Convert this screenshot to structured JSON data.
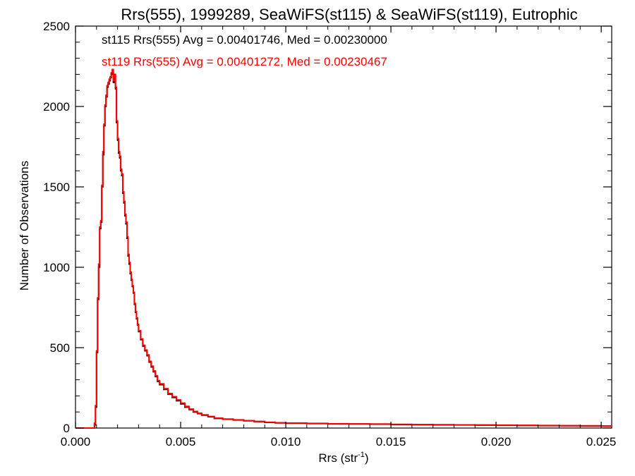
{
  "chart_data": {
    "type": "line",
    "title": "Rrs(555), 1999289, SeaWiFS(st115) & SeaWiFS(st119), Eutrophic",
    "xlabel": "Rrs (str",
    "xlabel_sup": "-1",
    "xlabel_close": ")",
    "ylabel": "Number of Observations",
    "xlim": [
      0.0,
      0.0255
    ],
    "ylim": [
      0,
      2500
    ],
    "grid": false,
    "xticks": [
      0.0,
      0.005,
      0.01,
      0.015,
      0.02,
      0.025
    ],
    "xtick_labels": [
      "0.000",
      "0.005",
      "0.010",
      "0.015",
      "0.020",
      "0.025"
    ],
    "yticks": [
      0,
      500,
      1000,
      1500,
      2000,
      2500
    ],
    "ytick_labels": [
      "0",
      "500",
      "1000",
      "1500",
      "2000",
      "2500"
    ],
    "annotations": [
      {
        "text": "st115 Rrs(555) Avg = 0.00401746, Med = 0.00230000",
        "color": "#000000"
      },
      {
        "text": "st119 Rrs(555) Avg = 0.00401272, Med = 0.00230467",
        "color": "#ff0000"
      }
    ],
    "series": [
      {
        "color": "#000000",
        "x": [
          0.0,
          0.0009,
          0.00095,
          0.001,
          0.00105,
          0.0011,
          0.00115,
          0.0012,
          0.00125,
          0.0013,
          0.00135,
          0.0014,
          0.00145,
          0.0015,
          0.00155,
          0.0016,
          0.00165,
          0.0017,
          0.00175,
          0.0018,
          0.00185,
          0.0019,
          0.00195,
          0.002,
          0.00205,
          0.0021,
          0.00215,
          0.0022,
          0.00225,
          0.0023,
          0.00235,
          0.0024,
          0.00245,
          0.0025,
          0.00255,
          0.0026,
          0.00265,
          0.0027,
          0.00275,
          0.0028,
          0.00285,
          0.0029,
          0.00295,
          0.003,
          0.0031,
          0.0032,
          0.0033,
          0.0034,
          0.0035,
          0.0036,
          0.0037,
          0.0038,
          0.0039,
          0.004,
          0.0042,
          0.0044,
          0.0046,
          0.0048,
          0.005,
          0.0052,
          0.0054,
          0.0056,
          0.0058,
          0.006,
          0.0063,
          0.0066,
          0.007,
          0.0075,
          0.008,
          0.0085,
          0.009,
          0.0095,
          0.01,
          0.011,
          0.012,
          0.013,
          0.014,
          0.015,
          0.016,
          0.017,
          0.018,
          0.019,
          0.02,
          0.021,
          0.022,
          0.023,
          0.024,
          0.025,
          0.0255
        ],
        "y": [
          0,
          20,
          130,
          470,
          800,
          1000,
          1240,
          1280,
          1500,
          1700,
          1880,
          2000,
          2060,
          2120,
          2140,
          2160,
          2180,
          2200,
          2210,
          2150,
          2190,
          2110,
          1900,
          1790,
          1710,
          1680,
          1600,
          1570,
          1460,
          1400,
          1320,
          1270,
          1180,
          1070,
          1020,
          960,
          920,
          880,
          840,
          770,
          720,
          680,
          640,
          600,
          550,
          510,
          480,
          450,
          410,
          380,
          350,
          320,
          290,
          270,
          240,
          210,
          190,
          170,
          150,
          130,
          115,
          100,
          90,
          80,
          70,
          60,
          55,
          50,
          45,
          40,
          35,
          32,
          30,
          28,
          26,
          25,
          24,
          22,
          21,
          20,
          19,
          18,
          17,
          16,
          15,
          14,
          13,
          12,
          12
        ]
      },
      {
        "color": "#ff0000",
        "x": [
          0.0,
          0.0009,
          0.00095,
          0.001,
          0.00105,
          0.0011,
          0.00115,
          0.0012,
          0.00125,
          0.0013,
          0.00135,
          0.0014,
          0.00145,
          0.0015,
          0.00155,
          0.0016,
          0.00165,
          0.0017,
          0.00175,
          0.0018,
          0.00185,
          0.0019,
          0.00195,
          0.002,
          0.00205,
          0.0021,
          0.00215,
          0.0022,
          0.00225,
          0.0023,
          0.00235,
          0.0024,
          0.00245,
          0.0025,
          0.00255,
          0.0026,
          0.00265,
          0.0027,
          0.00275,
          0.0028,
          0.00285,
          0.0029,
          0.00295,
          0.003,
          0.0031,
          0.0032,
          0.0033,
          0.0034,
          0.0035,
          0.0036,
          0.0037,
          0.0038,
          0.0039,
          0.004,
          0.0042,
          0.0044,
          0.0046,
          0.0048,
          0.005,
          0.0052,
          0.0054,
          0.0056,
          0.0058,
          0.006,
          0.0063,
          0.0066,
          0.007,
          0.0075,
          0.008,
          0.0085,
          0.009,
          0.0095,
          0.01,
          0.011,
          0.012,
          0.013,
          0.014,
          0.015,
          0.016,
          0.017,
          0.018,
          0.019,
          0.02,
          0.021,
          0.022,
          0.023,
          0.024,
          0.025,
          0.0255
        ],
        "y": [
          0,
          30,
          140,
          480,
          810,
          1020,
          1250,
          1290,
          1510,
          1720,
          1890,
          2010,
          2070,
          2130,
          2150,
          2170,
          2185,
          2210,
          2230,
          2160,
          2200,
          2120,
          1910,
          1800,
          1720,
          1690,
          1610,
          1580,
          1470,
          1410,
          1330,
          1280,
          1190,
          1080,
          1030,
          970,
          925,
          885,
          845,
          775,
          725,
          685,
          645,
          605,
          555,
          515,
          485,
          455,
          415,
          385,
          355,
          325,
          295,
          275,
          245,
          215,
          195,
          175,
          155,
          135,
          118,
          103,
          92,
          82,
          72,
          62,
          56,
          51,
          46,
          41,
          36,
          33,
          31,
          29,
          27,
          26,
          25,
          23,
          22,
          21,
          20,
          19,
          18,
          17,
          16,
          15,
          14,
          13,
          13
        ]
      }
    ]
  }
}
